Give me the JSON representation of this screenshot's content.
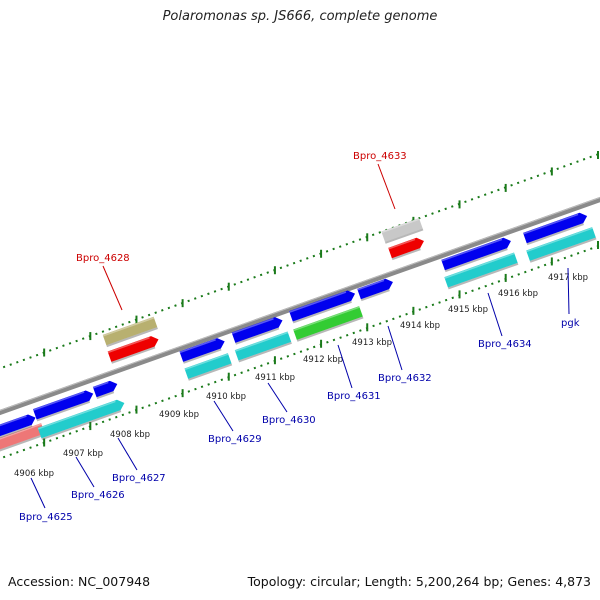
{
  "title": "Polaromonas sp. JS666, complete genome",
  "accession": "Accession: NC_007948",
  "summary": "Topology: circular; Length: 5,200,264 bp; Genes: 4,873",
  "colors": {
    "label_red": "#cc0000",
    "label_blue": "#0000aa",
    "backbone": "#8a8a8a",
    "tick_green": "#1a7a1a",
    "blue_gene": "#0000ee",
    "cyan_gene": "#22cccc",
    "red_gene": "#ee0000",
    "green_gene": "#33cc33",
    "olive_gene": "#b8b070",
    "grey_gene": "#c8c8c8",
    "pink_gene": "#ee7777"
  },
  "scale_labels": [
    "4906 kbp",
    "4907 kbp",
    "4908 kbp",
    "4909 kbp",
    "4910 kbp",
    "4911 kbp",
    "4912 kbp",
    "4913 kbp",
    "4914 kbp",
    "4915 kbp",
    "4916 kbp",
    "4917 kbp"
  ],
  "gene_labels": {
    "outer": [
      "Bpro_4628",
      "Bpro_4633"
    ],
    "inner": [
      "Bpro_4625",
      "Bpro_4626",
      "Bpro_4627",
      "Bpro_4629",
      "Bpro_4630",
      "Bpro_4631",
      "Bpro_4632",
      "Bpro_4634",
      "pgk"
    ]
  }
}
